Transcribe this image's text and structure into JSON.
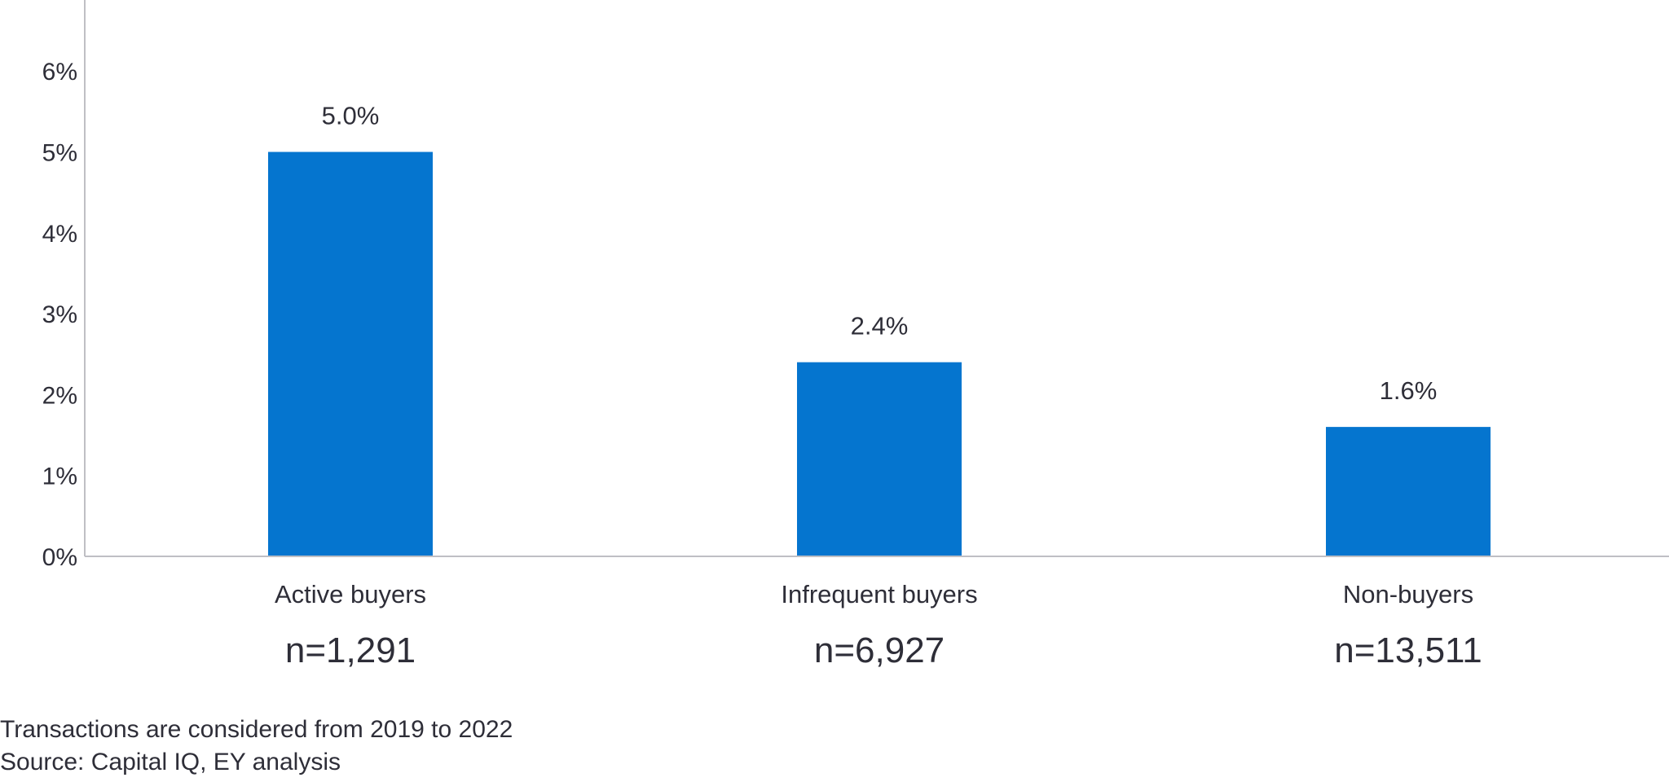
{
  "chart_data": {
    "type": "bar",
    "categories": [
      "Active buyers",
      "Infrequent buyers",
      "Non-buyers"
    ],
    "values": [
      5.0,
      2.4,
      1.6
    ],
    "value_labels": [
      "5.0%",
      "2.4%",
      "1.6%"
    ],
    "sample_sizes": [
      "n=1,291",
      "n=6,927",
      "n=13,511"
    ],
    "yticks": [
      0,
      1,
      2,
      3,
      4,
      5,
      6
    ],
    "ytick_labels": [
      "0%",
      "1%",
      "2%",
      "3%",
      "4%",
      "5%",
      "6%"
    ],
    "ylim": [
      0,
      6.8
    ],
    "grid": false,
    "bar_color": "#0575cf",
    "axis_color": "#bfbfc4",
    "text_color": "#2e2e38"
  },
  "footnotes": {
    "period": "Transactions are considered from 2019 to 2022",
    "source": "Source: Capital IQ, EY analysis"
  }
}
